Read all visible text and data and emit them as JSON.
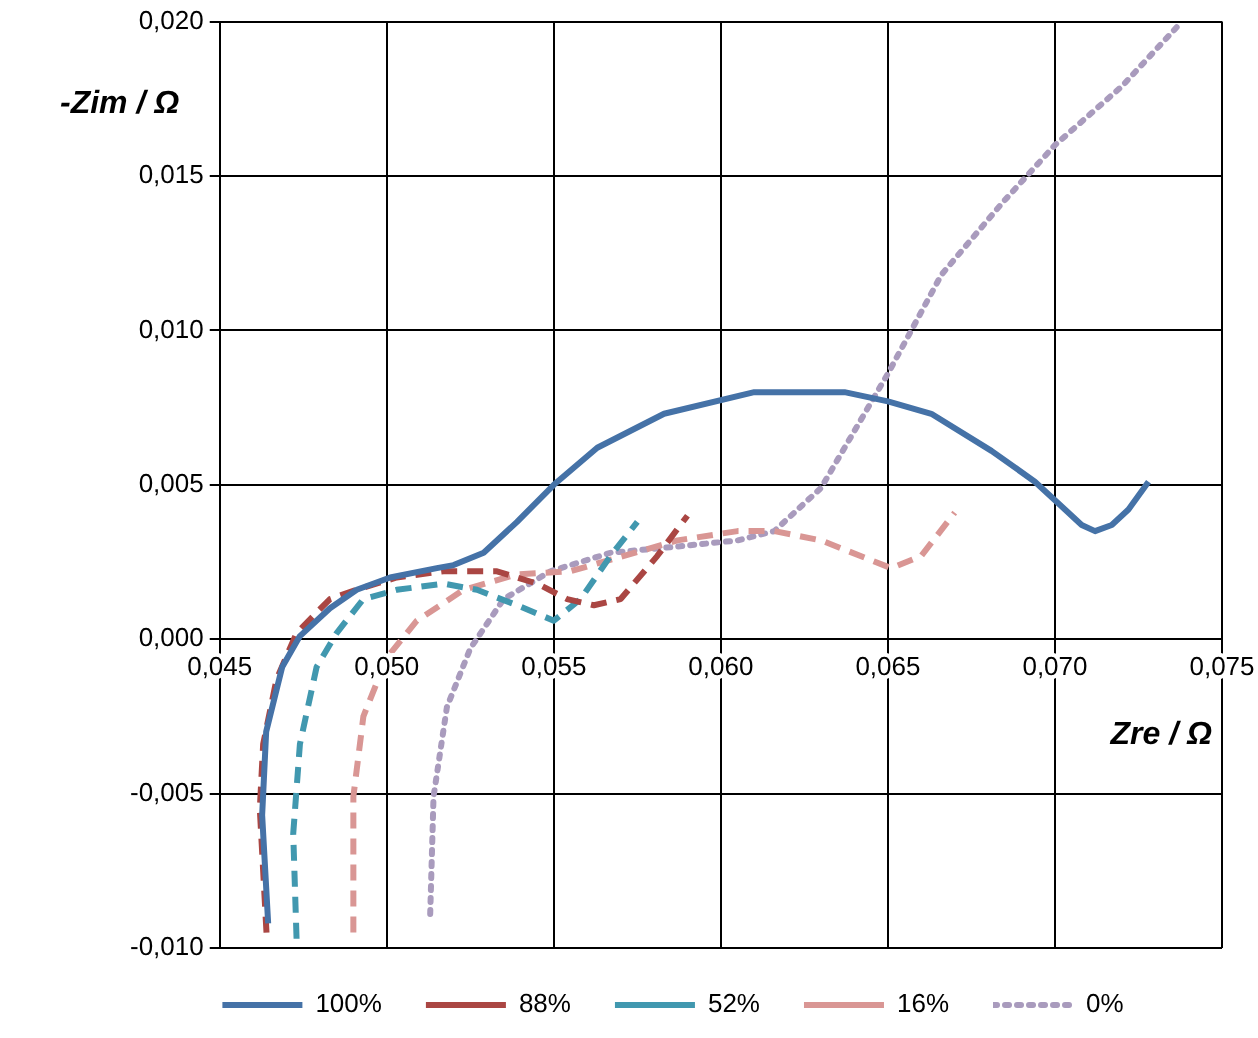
{
  "chart_data": {
    "type": "line",
    "xlabel": "Zre / Ω",
    "ylabel": "-Zim / Ω",
    "xlim": [
      0.045,
      0.075
    ],
    "ylim": [
      -0.01,
      0.02
    ],
    "xticks": [
      {
        "value": 0.045,
        "label": "0,045"
      },
      {
        "value": 0.05,
        "label": "0,050"
      },
      {
        "value": 0.055,
        "label": "0,055"
      },
      {
        "value": 0.06,
        "label": "0,060"
      },
      {
        "value": 0.065,
        "label": "0,065"
      },
      {
        "value": 0.07,
        "label": "0,070"
      },
      {
        "value": 0.075,
        "label": "0,075"
      }
    ],
    "yticks": [
      {
        "value": -0.01,
        "label": "-0,010"
      },
      {
        "value": -0.005,
        "label": "-0,005"
      },
      {
        "value": 0,
        "label": "0,000"
      },
      {
        "value": 0.005,
        "label": "0,005"
      },
      {
        "value": 0.01,
        "label": "0,010"
      },
      {
        "value": 0.015,
        "label": "0,015"
      },
      {
        "value": 0.02,
        "label": "0,020"
      }
    ],
    "grid": true,
    "legend": "bottom",
    "marker": "none",
    "series": [
      {
        "name": "100%",
        "color": "#4572a7",
        "line_style": "solid",
        "x": [
          0.04645,
          0.04627,
          0.04639,
          0.04687,
          0.0474,
          0.0483,
          0.0491,
          0.0501,
          0.0515,
          0.052,
          0.0529,
          0.0539,
          0.055,
          0.0563,
          0.0583,
          0.061,
          0.0637,
          0.065,
          0.0663,
          0.0681,
          0.0694,
          0.0708,
          0.0712,
          0.0717,
          0.0722,
          0.0728
        ],
        "values": [
          -0.0092,
          -0.0057,
          -0.003,
          -0.0009,
          0.0001,
          0.001,
          0.0016,
          0.002,
          0.0023,
          0.0024,
          0.0028,
          0.0038,
          0.005,
          0.0062,
          0.0073,
          0.008,
          0.008,
          0.0077,
          0.0073,
          0.0061,
          0.0051,
          0.0037,
          0.0035,
          0.0037,
          0.0042,
          0.0051
        ]
      },
      {
        "name": "88%",
        "color": "#aa4643",
        "line_style": "dashed",
        "x": [
          0.0464,
          0.0462,
          0.0463,
          0.0467,
          0.0473,
          0.0483,
          0.0491,
          0.0503,
          0.0517,
          0.0533,
          0.0545,
          0.0554,
          0.0562,
          0.057,
          0.0581,
          0.059
        ],
        "values": [
          -0.0095,
          -0.0055,
          -0.0034,
          -0.0013,
          0.0002,
          0.0013,
          0.0016,
          0.002,
          0.0022,
          0.0022,
          0.0018,
          0.0013,
          0.0011,
          0.0013,
          0.0027,
          0.004
        ]
      },
      {
        "name": "52%",
        "color": "#4198af",
        "line_style": "dashed",
        "x": [
          0.0473,
          0.0472,
          0.0474,
          0.0479,
          0.0485,
          0.0493,
          0.0503,
          0.0517,
          0.0527,
          0.0539,
          0.055,
          0.0558,
          0.0567,
          0.0575
        ],
        "values": [
          -0.0097,
          -0.0063,
          -0.0034,
          -0.0009,
          0.0002,
          0.0013,
          0.0016,
          0.0018,
          0.0016,
          0.0011,
          0.0006,
          0.0013,
          0.0027,
          0.0038
        ]
      },
      {
        "name": "16%",
        "color": "#d99694",
        "line_style": "dashed",
        "x": [
          0.049,
          0.049,
          0.0493,
          0.05,
          0.0509,
          0.0523,
          0.0539,
          0.0555,
          0.0571,
          0.0587,
          0.0605,
          0.0616,
          0.063,
          0.0651,
          0.066,
          0.067
        ],
        "values": [
          -0.0095,
          -0.0051,
          -0.0025,
          -0.0006,
          0.0006,
          0.0016,
          0.0021,
          0.0022,
          0.0027,
          0.0032,
          0.0035,
          0.0035,
          0.0032,
          0.0023,
          0.0027,
          0.0041
        ]
      },
      {
        "name": "0%",
        "color": "#a99bbd",
        "line_style": "dotted",
        "x": [
          0.0513,
          0.0514,
          0.0518,
          0.0525,
          0.0535,
          0.0549,
          0.0567,
          0.0587,
          0.0605,
          0.0616,
          0.063,
          0.065,
          0.0666,
          0.0684,
          0.07,
          0.072,
          0.0738
        ],
        "values": [
          -0.0089,
          -0.0051,
          -0.0022,
          -0.0003,
          0.0013,
          0.0022,
          0.0028,
          0.003,
          0.0032,
          0.0035,
          0.0049,
          0.0086,
          0.0118,
          0.0141,
          0.016,
          0.0179,
          0.02
        ]
      }
    ]
  }
}
